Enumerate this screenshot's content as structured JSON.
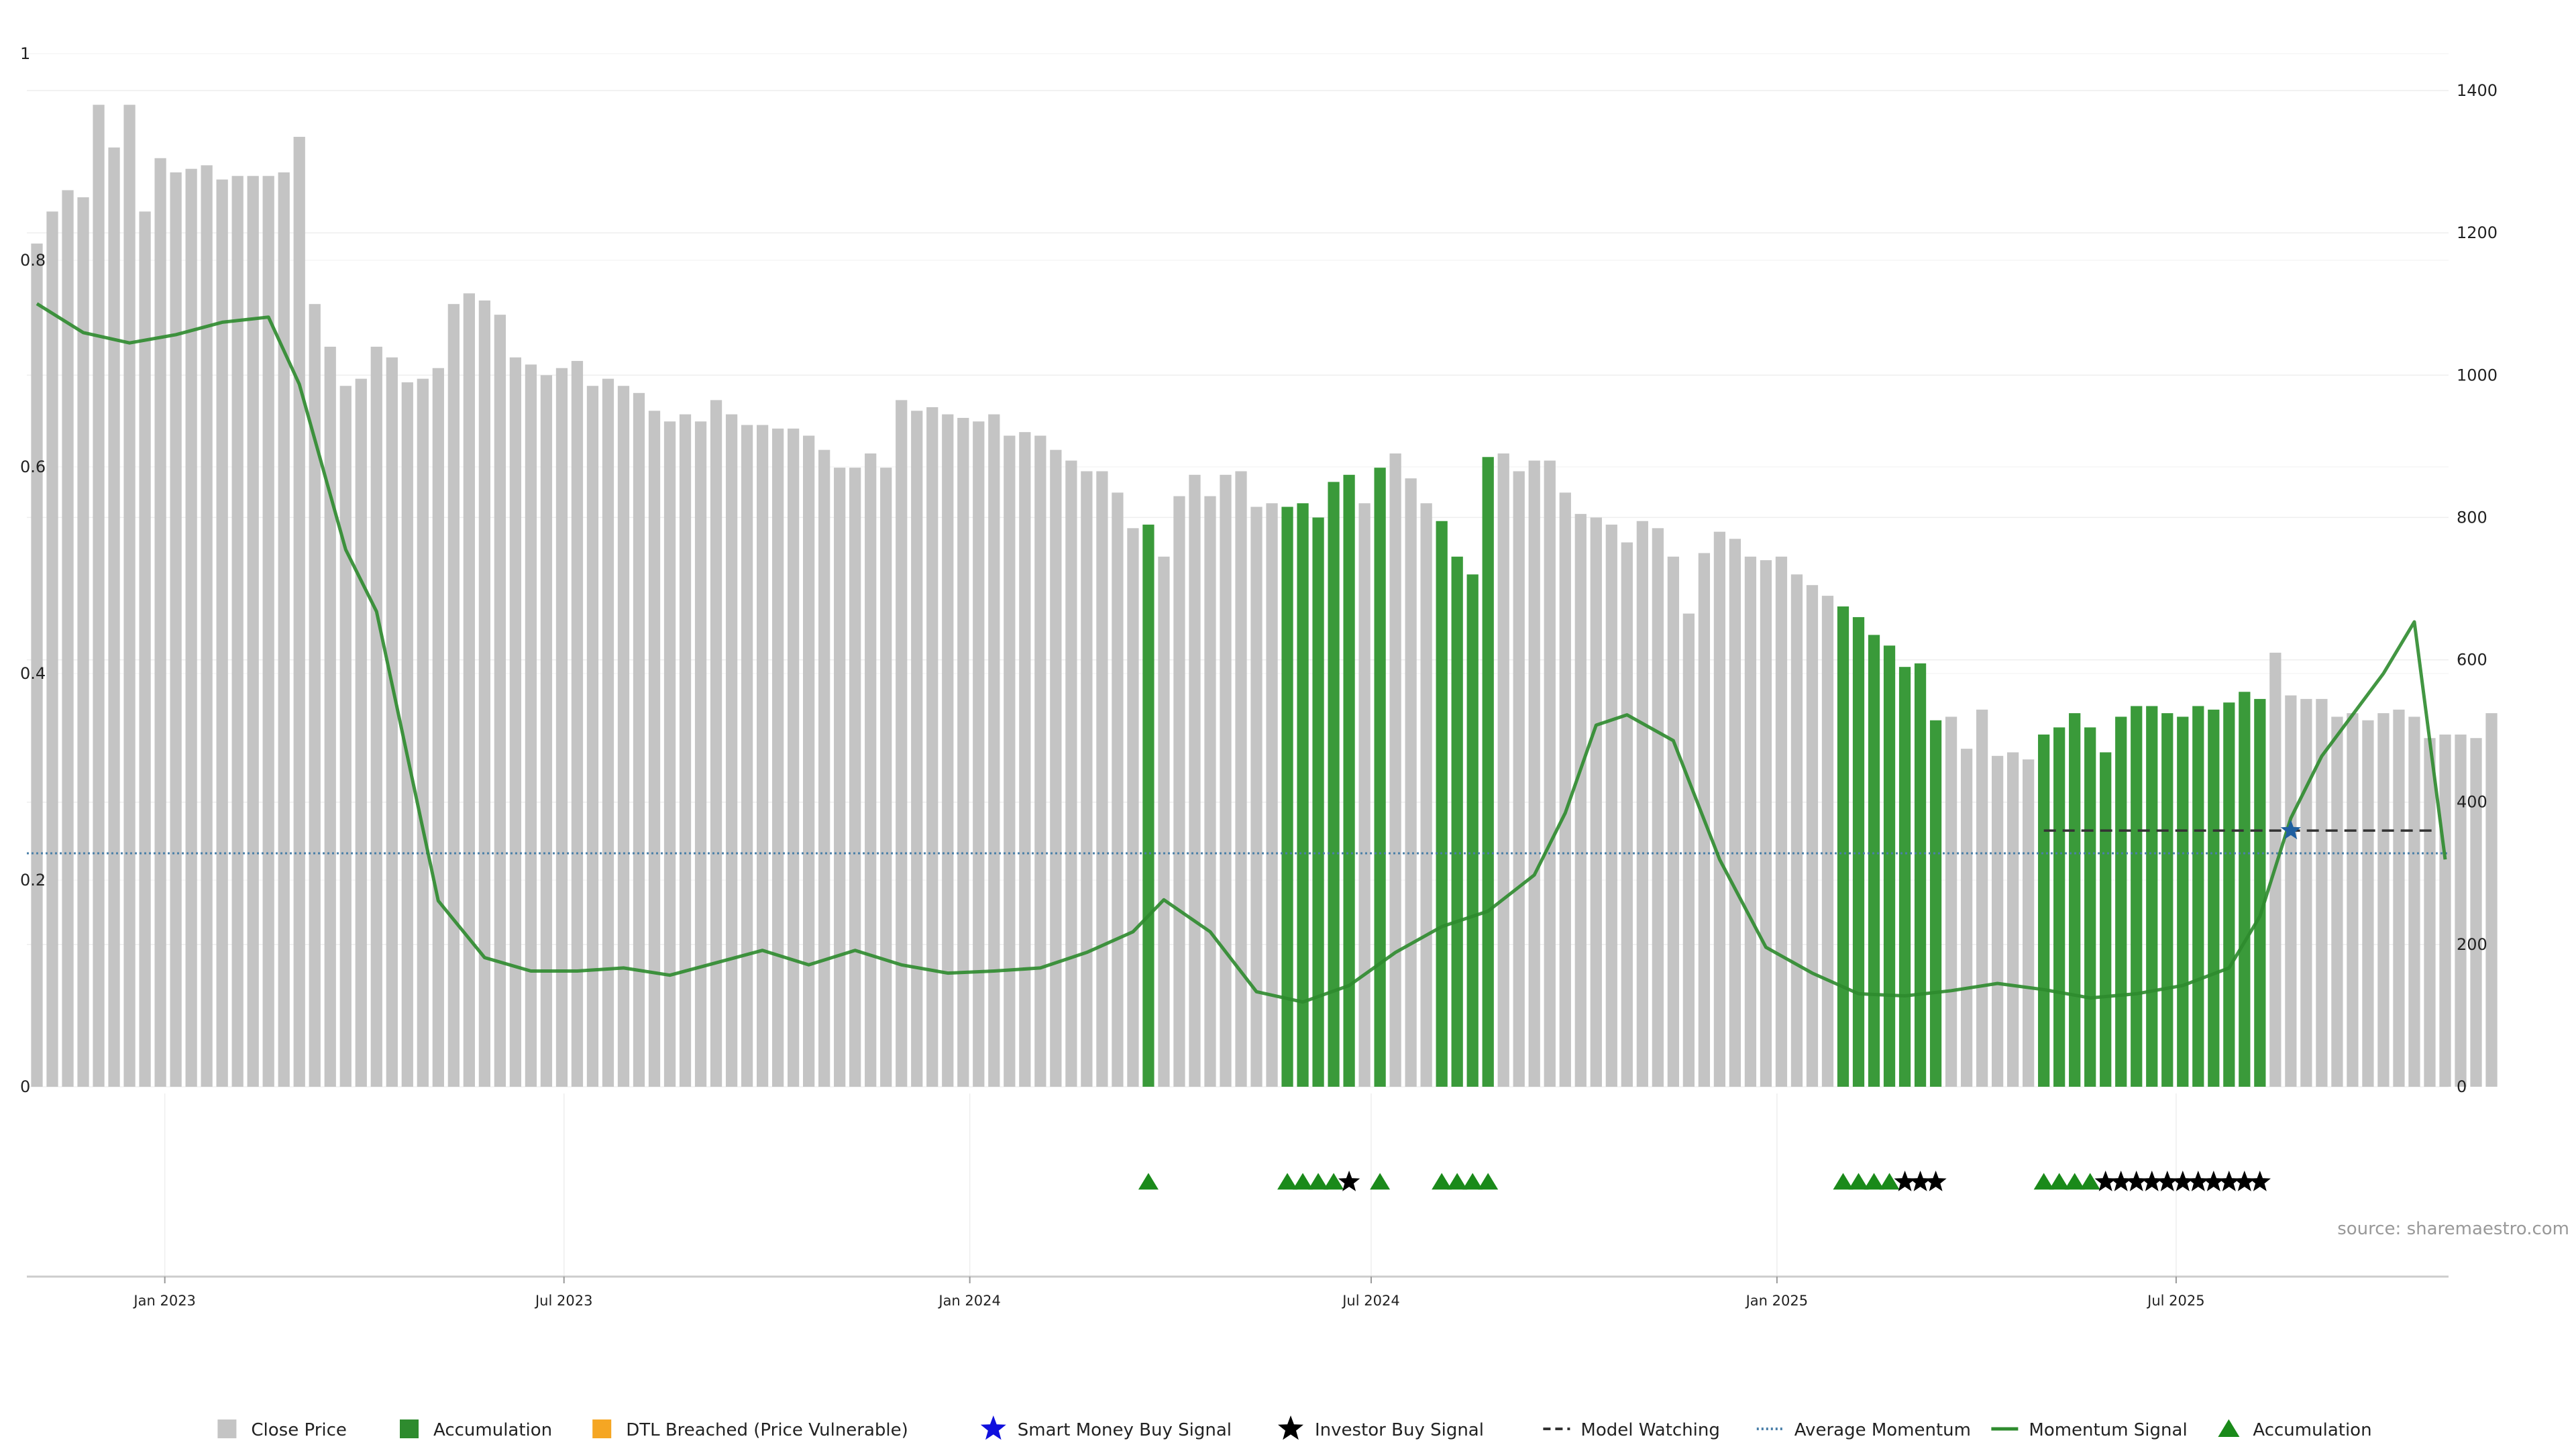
{
  "source": "source: sharemaestro.com",
  "chart_data": {
    "type": "bar",
    "title": "",
    "xlabel": "",
    "ylabel": "",
    "grid": true,
    "legend_placement": "bottom-center",
    "left_axis": {
      "ylim": [
        0,
        1
      ],
      "ticks": [
        "0",
        "0.2",
        "0.4",
        "0.6",
        "0.8",
        "1"
      ]
    },
    "right_axis": {
      "ylim": [
        0,
        1450
      ],
      "ticks": [
        "0",
        "200",
        "400",
        "600",
        "800",
        "1000",
        "1200",
        "1400"
      ]
    },
    "x_axis": {
      "start": "2022-11-04",
      "end": "2025-10-31",
      "ticks": [
        {
          "date": "2023-01-01",
          "label": "Jan 2023"
        },
        {
          "date": "2023-07-01",
          "label": "Jul 2023"
        },
        {
          "date": "2024-01-01",
          "label": "Jan 2024"
        },
        {
          "date": "2024-07-01",
          "label": "Jul 2024"
        },
        {
          "date": "2025-01-01",
          "label": "Jan 2025"
        },
        {
          "date": "2025-07-01",
          "label": "Jul 2025"
        }
      ]
    },
    "colors": {
      "close_price": "#c4c4c4",
      "accumulation": "#3a9a3a",
      "dtl_breached": "#f5a623",
      "smart_money": "#1010dd",
      "investor_buy": "#000000",
      "model_watching": "#333333",
      "average_momentum": "#4a7fa8",
      "momentum_signal": "#2e8b2e"
    },
    "close_price": {
      "first_week": "2022-11-04",
      "interval_days": 7,
      "values": [
        1185,
        1230,
        1260,
        1250,
        1380,
        1320,
        1380,
        1230,
        1305,
        1285,
        1290,
        1295,
        1275,
        1280,
        1280,
        1280,
        1285,
        1335,
        1100,
        1040,
        985,
        995,
        1040,
        1025,
        990,
        995,
        1010,
        1100,
        1115,
        1105,
        1085,
        1025,
        1015,
        1000,
        1010,
        1020,
        985,
        995,
        985,
        975,
        950,
        935,
        945,
        935,
        965,
        945,
        930,
        930,
        925,
        925,
        915,
        895,
        870,
        870,
        890,
        870,
        965,
        950,
        955,
        945,
        940,
        935,
        945,
        915,
        920,
        915,
        895,
        880,
        865,
        865,
        835,
        785,
        790,
        745,
        830,
        860,
        830,
        860,
        865,
        815,
        820,
        815,
        820,
        800,
        850,
        860,
        820,
        870,
        890,
        855,
        820,
        795,
        745,
        720,
        885,
        890,
        865,
        880,
        880,
        835,
        805,
        800,
        790,
        765,
        795,
        785,
        745,
        665,
        750,
        780,
        770,
        745,
        740,
        745,
        720,
        705,
        690,
        675,
        660,
        635,
        620,
        590,
        595,
        515,
        520,
        475,
        530,
        465,
        470,
        460,
        495,
        505,
        525,
        505,
        470,
        520,
        535,
        535,
        525,
        520,
        535,
        530,
        540,
        555,
        545,
        610,
        550,
        545,
        545,
        520,
        525,
        515,
        525,
        530,
        520,
        490,
        495,
        495,
        490,
        525
      ],
      "accumulation_weeks": [
        72,
        81,
        82,
        83,
        84,
        85,
        87,
        91,
        92,
        93,
        94,
        117,
        118,
        119,
        120,
        121,
        122,
        123,
        130,
        131,
        132,
        133,
        134,
        135,
        136,
        137,
        138,
        139,
        140,
        141,
        142,
        143,
        144
      ]
    },
    "series": [
      {
        "name": "Momentum Signal",
        "x": [
          "2022-11-04",
          "2022-11-25",
          "2022-12-16",
          "2023-01-06",
          "2023-01-27",
          "2023-02-17",
          "2023-03-03",
          "2023-03-24",
          "2023-04-07",
          "2023-04-21",
          "2023-05-05",
          "2023-05-26",
          "2023-06-16",
          "2023-07-07",
          "2023-07-28",
          "2023-08-18",
          "2023-09-08",
          "2023-09-29",
          "2023-10-20",
          "2023-11-10",
          "2023-12-01",
          "2023-12-22",
          "2024-01-12",
          "2024-02-02",
          "2024-02-23",
          "2024-03-15",
          "2024-03-29",
          "2024-04-19",
          "2024-05-10",
          "2024-05-31",
          "2024-06-21",
          "2024-07-12",
          "2024-08-02",
          "2024-08-23",
          "2024-09-13",
          "2024-09-27",
          "2024-10-11",
          "2024-10-25",
          "2024-11-15",
          "2024-12-06",
          "2024-12-27",
          "2025-01-17",
          "2025-02-07",
          "2025-02-28",
          "2025-03-21",
          "2025-04-11",
          "2025-05-02",
          "2025-05-23",
          "2025-06-13",
          "2025-07-04",
          "2025-07-25",
          "2025-08-08",
          "2025-08-22",
          "2025-09-05",
          "2025-09-19",
          "2025-10-03",
          "2025-10-17",
          "2025-10-31"
        ],
        "values": [
          0.758,
          0.73,
          0.72,
          0.728,
          0.74,
          0.745,
          0.68,
          0.52,
          0.46,
          0.32,
          0.18,
          0.125,
          0.112,
          0.112,
          0.115,
          0.108,
          0.12,
          0.132,
          0.118,
          0.132,
          0.118,
          0.11,
          0.112,
          0.115,
          0.13,
          0.15,
          0.181,
          0.15,
          0.092,
          0.082,
          0.098,
          0.13,
          0.155,
          0.17,
          0.205,
          0.265,
          0.35,
          0.36,
          0.335,
          0.22,
          0.135,
          0.11,
          0.09,
          0.088,
          0.093,
          0.1,
          0.094,
          0.086,
          0.09,
          0.098,
          0.115,
          0.165,
          0.26,
          0.32,
          0.36,
          0.4,
          0.45,
          0.22
        ]
      },
      {
        "name": "Average Momentum",
        "value": 0.226
      },
      {
        "name": "Model Watching",
        "value": 360
      }
    ],
    "signals": {
      "accumulation_weeks": [
        72,
        81,
        82,
        83,
        84,
        87,
        91,
        92,
        93,
        94,
        117,
        118,
        119,
        120,
        130,
        131,
        132,
        133
      ],
      "investor_buy_weeks": [
        85,
        121,
        122,
        123,
        134,
        135,
        136,
        137,
        138,
        139,
        140,
        141,
        142,
        143,
        144
      ],
      "smart_money_weeks": [],
      "smart_money_star": {
        "date": "2025-08-22",
        "value": 360
      }
    },
    "legend": [
      {
        "label": "Close Price",
        "marker": "square",
        "color": "#c4c4c4"
      },
      {
        "label": "Accumulation",
        "marker": "square",
        "color": "#2e8b2e"
      },
      {
        "label": "DTL Breached (Price Vulnerable)",
        "marker": "square",
        "color": "#f5a623"
      },
      {
        "label": "Smart Money Buy Signal",
        "marker": "star",
        "color": "#1010dd"
      },
      {
        "label": "Investor Buy Signal",
        "marker": "star",
        "color": "#000000"
      },
      {
        "label": "Model Watching",
        "marker": "dash",
        "color": "#333333"
      },
      {
        "label": "Average Momentum",
        "marker": "dot",
        "color": "#4a7fa8"
      },
      {
        "label": "Momentum Signal",
        "marker": "line",
        "color": "#2e8b2e"
      },
      {
        "label": "Accumulation",
        "marker": "triangle",
        "color": "#1a8a1a"
      }
    ]
  }
}
